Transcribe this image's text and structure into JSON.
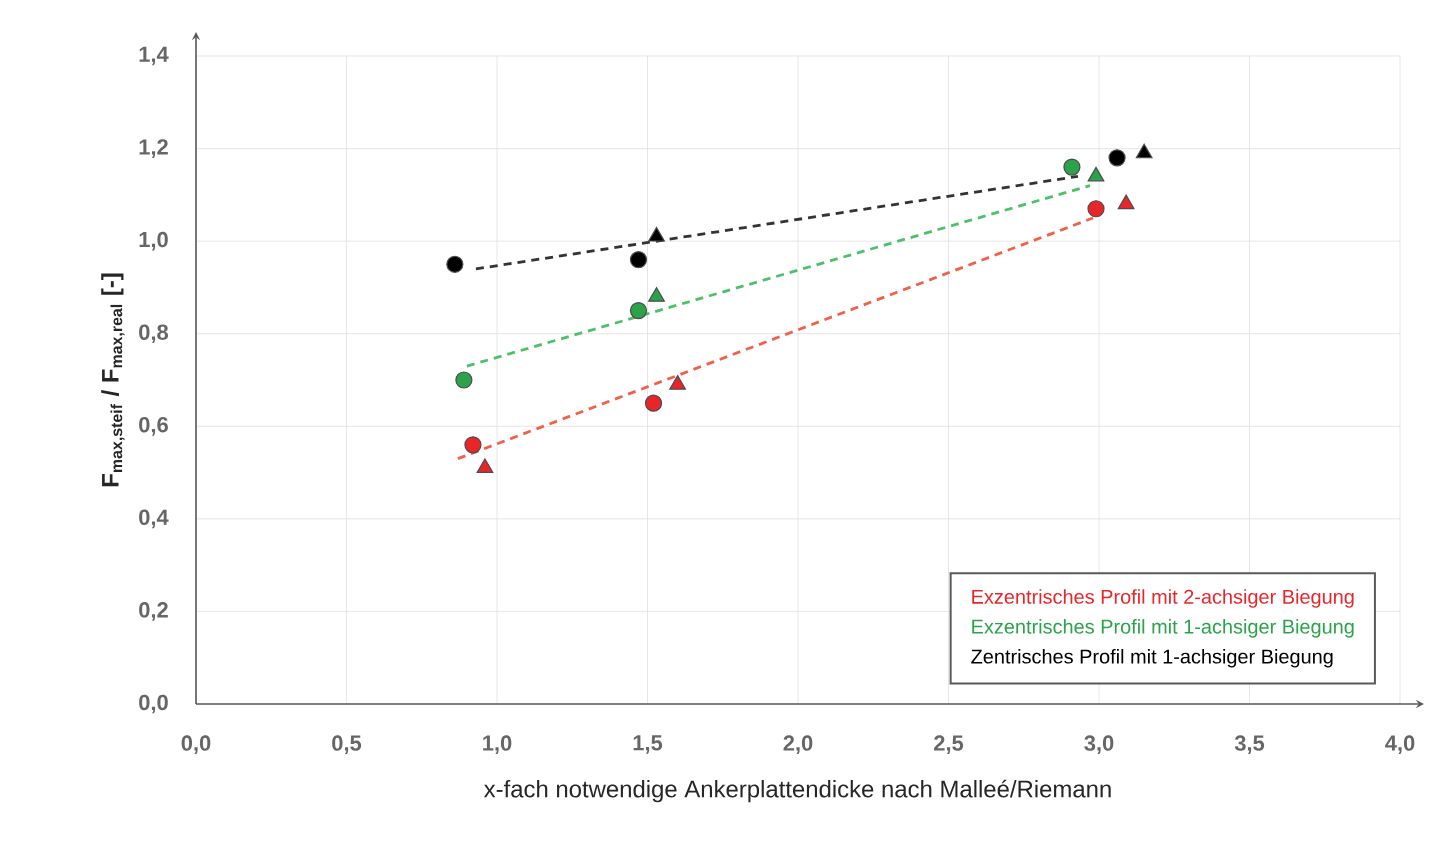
{
  "chart_data": {
    "type": "scatter",
    "xlabel": "x-fach notwendige Ankerplattendicke nach Malleé/Riemann",
    "ylabel": "F$_{max,steif}$ / F$_{max,real}$ [-]",
    "xlim": [
      0,
      4.0
    ],
    "ylim": [
      0,
      1.4
    ],
    "xticks": [
      {
        "value": 0,
        "label": "0,0"
      },
      {
        "value": 0.5,
        "label": "0,5"
      },
      {
        "value": 1.0,
        "label": "1,0"
      },
      {
        "value": 1.5,
        "label": "1,5"
      },
      {
        "value": 2.0,
        "label": "2,0"
      },
      {
        "value": 2.5,
        "label": "2,5"
      },
      {
        "value": 3.0,
        "label": "3,0"
      },
      {
        "value": 3.5,
        "label": "3,5"
      },
      {
        "value": 4.0,
        "label": "4,0"
      }
    ],
    "yticks": [
      {
        "value": 0,
        "label": "0,0"
      },
      {
        "value": 0.2,
        "label": "0,2"
      },
      {
        "value": 0.4,
        "label": "0,4"
      },
      {
        "value": 0.6,
        "label": "0,6"
      },
      {
        "value": 0.8,
        "label": "0,8"
      },
      {
        "value": 1.0,
        "label": "1,0"
      },
      {
        "value": 1.2,
        "label": "1,2"
      },
      {
        "value": 1.4,
        "label": "1,4"
      }
    ],
    "grid": true,
    "legend": "bottom right",
    "series": [
      {
        "name": "Exzentrisches Profil mit 2-achsiger Biegung",
        "marker": "circle",
        "color": "#e8262a",
        "x": [
          0.92,
          1.52,
          2.99
        ],
        "values": [
          0.56,
          0.65,
          1.07
        ]
      },
      {
        "marker": "triangle",
        "color": "#e8262a",
        "x": [
          0.96,
          1.6,
          3.09
        ],
        "values": [
          0.51,
          0.69,
          1.08
        ]
      },
      {
        "type": "line",
        "line_style": "dashed",
        "color": "#f0604a",
        "x": [
          0.87,
          2.98
        ],
        "values": [
          0.53,
          1.05
        ]
      },
      {
        "name": "Exzentrisches Profil mit 1-achsiger Biegung",
        "marker": "circle",
        "color": "#2ca34a",
        "x": [
          0.89,
          1.47,
          2.91
        ],
        "values": [
          0.7,
          0.85,
          1.16
        ]
      },
      {
        "marker": "triangle",
        "color": "#2ca34a",
        "x": [
          1.53,
          2.99
        ],
        "values": [
          0.88,
          1.14
        ]
      },
      {
        "type": "line",
        "line_style": "dashed",
        "color": "#4fc06a",
        "x": [
          0.9,
          2.97
        ],
        "values": [
          0.73,
          1.12
        ]
      },
      {
        "name": "Zentrisches Profil mit 1-achsiger Biegung",
        "marker": "circle",
        "color": "#000000",
        "x": [
          0.86,
          1.47,
          3.06
        ],
        "values": [
          0.95,
          0.96,
          1.18
        ]
      },
      {
        "marker": "triangle",
        "color": "#000000",
        "x": [
          1.53,
          3.15
        ],
        "values": [
          1.01,
          1.19
        ]
      },
      {
        "type": "line",
        "line_style": "dashed",
        "color": "#333333",
        "x": [
          0.93,
          2.93
        ],
        "values": [
          0.94,
          1.14
        ]
      }
    ]
  }
}
